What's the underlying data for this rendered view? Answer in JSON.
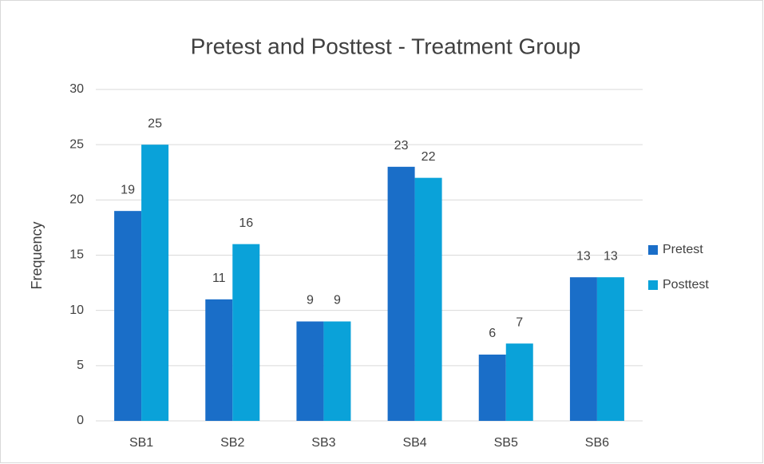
{
  "chart_data": {
    "type": "bar",
    "title": "Pretest and Posttest - Treatment Group",
    "y_label": "Frequency",
    "categories": [
      "SB1",
      "SB2",
      "SB3",
      "SB4",
      "SB5",
      "SB6"
    ],
    "series": [
      {
        "name": "Pretest",
        "color": "#1a6ec8",
        "values": [
          19,
          11,
          9,
          23,
          6,
          13
        ]
      },
      {
        "name": "Posttest",
        "color": "#0aa2d9",
        "values": [
          25,
          16,
          9,
          22,
          7,
          13
        ]
      }
    ],
    "ylim": [
      0,
      30
    ],
    "yticks": [
      0,
      5,
      10,
      15,
      20,
      25,
      30
    ],
    "grid": true,
    "legend": "right"
  }
}
